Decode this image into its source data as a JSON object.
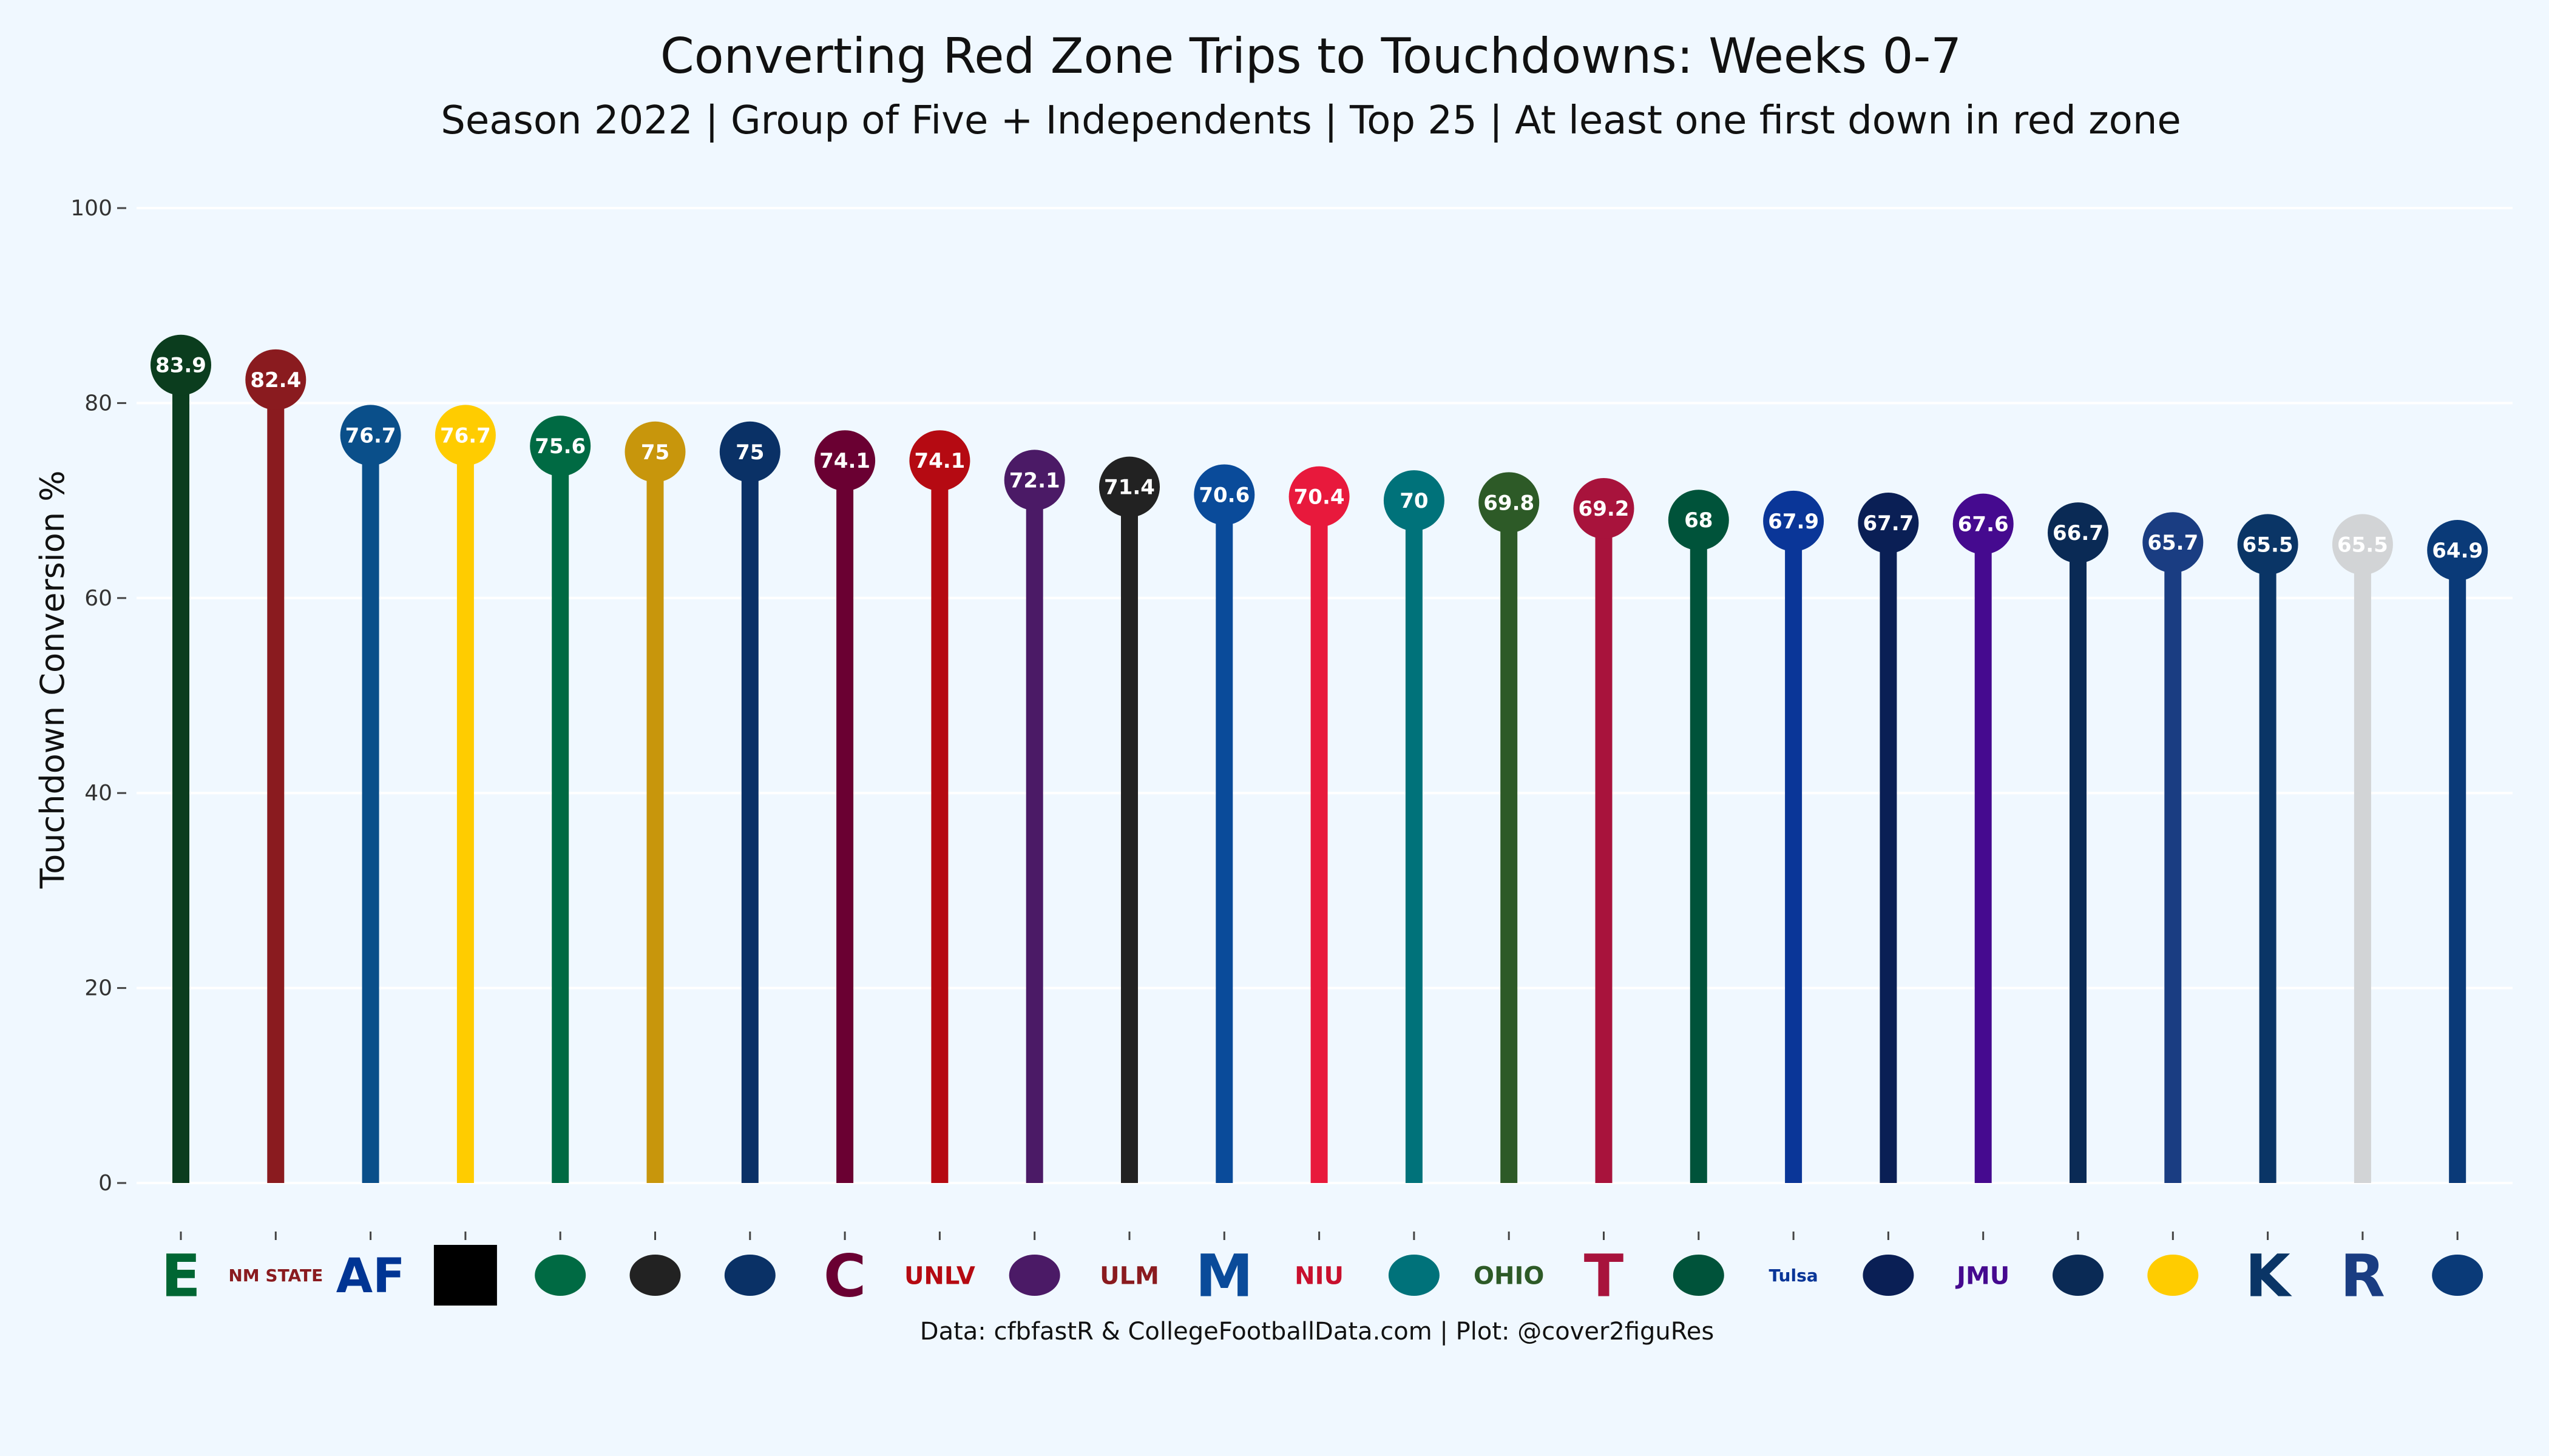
{
  "chart_data": {
    "type": "lollipop",
    "title": "Converting Red Zone Trips to Touchdowns: Weeks 0-7",
    "subtitle": "Season 2022 | Group of Five + Independents | Top 25 | At least one first down in red zone",
    "ylabel": "Touchdown Conversion %",
    "xlabel": "",
    "ylim": [
      0,
      100
    ],
    "yticks": [
      0,
      20,
      40,
      60,
      80,
      100
    ],
    "grid": true,
    "caption": "Data: cfbfastR & CollegeFootballData.com | Plot: @cover2figuRes",
    "values": [
      83.9,
      82.4,
      76.7,
      76.7,
      75.6,
      75,
      75,
      74.1,
      74.1,
      72.1,
      71.4,
      70.6,
      70.4,
      70,
      69.8,
      69.2,
      68,
      67.9,
      67.7,
      67.6,
      66.7,
      65.7,
      65.5,
      65.5,
      64.9
    ],
    "labels": [
      "83.9",
      "82.4",
      "76.7",
      "76.7",
      "75.6",
      "75",
      "75",
      "74.1",
      "74.1",
      "72.1",
      "71.4",
      "70.6",
      "70.4",
      "70",
      "69.8",
      "69.2",
      "68",
      "67.9",
      "67.7",
      "67.6",
      "66.7",
      "65.7",
      "65.5",
      "65.5",
      "64.9"
    ],
    "colors": [
      "#0b3d1e",
      "#8a1b1f",
      "#0a4f8a",
      "#ffcc00",
      "#006a43",
      "#c8960c",
      "#0a3166",
      "#6a0032",
      "#b50a12",
      "#4b1a66",
      "#222222",
      "#0a4b9a",
      "#e8193c",
      "#00727a",
      "#2d5a27",
      "#a8133c",
      "#00533a",
      "#0a3698",
      "#0a1f55",
      "#450a8f",
      "#0a2a55",
      "#1a3d82",
      "#0a3566",
      "#d2d4d6",
      "#0a3a78"
    ],
    "label_colors": [
      "#ffffff",
      "#ffffff",
      "#ffffff",
      "#ffffff",
      "#ffffff",
      "#ffffff",
      "#ffffff",
      "#ffffff",
      "#ffffff",
      "#ffffff",
      "#ffffff",
      "#ffffff",
      "#ffffff",
      "#ffffff",
      "#ffffff",
      "#ffffff",
      "#ffffff",
      "#ffffff",
      "#ffffff",
      "#ffffff",
      "#ffffff",
      "#ffffff",
      "#ffffff",
      "#ffffff",
      "#ffffff"
    ],
    "logos": [
      {
        "icon": "eastern-michigan-logo",
        "text": "E",
        "color": "#006633"
      },
      {
        "icon": "new-mexico-state-logo",
        "text": "NM STATE",
        "color": "#8a1b1f"
      },
      {
        "icon": "air-force-logo",
        "text": "AF",
        "color": "#003594"
      },
      {
        "icon": "missing-logo",
        "text": "",
        "color": "#000000"
      },
      {
        "icon": "tulane-logo",
        "text": "",
        "color": "#006a43"
      },
      {
        "icon": "army-logo",
        "text": "",
        "color": "#222222"
      },
      {
        "icon": "nevada-logo",
        "text": "",
        "color": "#0a3166"
      },
      {
        "icon": "central-michigan-logo",
        "text": "C",
        "color": "#6a0032"
      },
      {
        "icon": "unlv-logo",
        "text": "UNLV",
        "color": "#b50a12"
      },
      {
        "icon": "east-carolina-logo",
        "text": "",
        "color": "#4b1a66"
      },
      {
        "icon": "ul-monroe-logo",
        "text": "ULM",
        "color": "#8a1b1f"
      },
      {
        "icon": "memphis-logo",
        "text": "M",
        "color": "#0a4b9a"
      },
      {
        "icon": "northern-illinois-logo",
        "text": "NIU",
        "color": "#c8102e"
      },
      {
        "icon": "coastal-carolina-logo",
        "text": "",
        "color": "#00727a"
      },
      {
        "icon": "ohio-logo",
        "text": "OHIO",
        "color": "#2d5a27"
      },
      {
        "icon": "temple-logo",
        "text": "T",
        "color": "#a8133c"
      },
      {
        "icon": "south-florida-logo",
        "text": "",
        "color": "#00533a"
      },
      {
        "icon": "tulsa-logo",
        "text": "Tulsa",
        "color": "#0a3698"
      },
      {
        "icon": "south-alabama-logo",
        "text": "",
        "color": "#0a1f55"
      },
      {
        "icon": "james-madison-logo",
        "text": "JMU",
        "color": "#450a8f"
      },
      {
        "icon": "utsa-logo",
        "text": "",
        "color": "#0a2a55"
      },
      {
        "icon": "southern-miss-logo",
        "text": "",
        "color": "#ffcc00"
      },
      {
        "icon": "kent-state-logo",
        "text": "K",
        "color": "#0a3566"
      },
      {
        "icon": "rice-logo",
        "text": "R",
        "color": "#1a3d82"
      },
      {
        "icon": "georgia-southern-logo",
        "text": "",
        "color": "#0a3a78"
      }
    ]
  }
}
